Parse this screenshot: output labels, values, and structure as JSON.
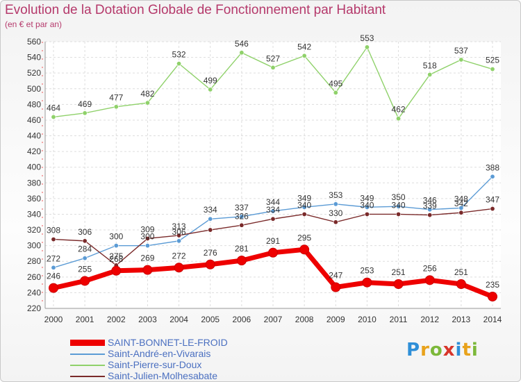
{
  "chart_data": {
    "type": "line",
    "title": "Evolution de la Dotation Globale de Fonctionnement par Habitant",
    "subtitle": "(en € et par an)",
    "x": [
      2000,
      2001,
      2002,
      2003,
      2004,
      2005,
      2006,
      2007,
      2008,
      2009,
      2010,
      2011,
      2012,
      2013,
      2014
    ],
    "ylim": [
      220,
      560
    ],
    "yticks": [
      220,
      240,
      260,
      280,
      300,
      320,
      340,
      360,
      380,
      400,
      420,
      440,
      460,
      480,
      500,
      520,
      540,
      560
    ],
    "grid": true,
    "legend_position": "bottom-left",
    "series": [
      {
        "name": "SAINT-BONNET-LE-FROID",
        "color": "#ee0000",
        "highlight": true,
        "values": [
          246,
          255,
          268,
          269,
          272,
          276,
          281,
          291,
          295,
          247,
          253,
          251,
          256,
          251,
          235
        ],
        "labels": [
          "246",
          "255",
          "268",
          "269",
          "272",
          "276",
          "281",
          "291",
          "295",
          "247",
          "253",
          "251",
          "256",
          "251",
          "235"
        ]
      },
      {
        "name": "Saint-André-en-Vivarais",
        "color": "#5b9bd5",
        "values": [
          272,
          284,
          300,
          300,
          306,
          334,
          337,
          344,
          349,
          353,
          349,
          350,
          346,
          348,
          388
        ],
        "labels": [
          "272",
          "284",
          "300",
          "300",
          "306",
          "334",
          "337",
          "344",
          "349",
          "353",
          "349",
          "350",
          "346",
          "348",
          "388"
        ]
      },
      {
        "name": "Saint-Pierre-sur-Doux",
        "color": "#8fd16a",
        "values": [
          464,
          469,
          477,
          482,
          532,
          499,
          546,
          527,
          542,
          495,
          553,
          462,
          518,
          537,
          525
        ],
        "labels": [
          "464",
          "469",
          "477",
          "482",
          "532",
          "499",
          "546",
          "527",
          "542",
          "495",
          "553",
          "462",
          "518",
          "537",
          "525"
        ]
      },
      {
        "name": "Saint-Julien-Molhesabate",
        "color": "#7a2a2a",
        "values": [
          308,
          306,
          275,
          309,
          313,
          320,
          326,
          334,
          340,
          330,
          340,
          340,
          339,
          342,
          347
        ],
        "labels": [
          "308",
          "306",
          "275",
          "309",
          "313",
          "",
          "326",
          "334",
          "340",
          "330",
          "340",
          "340",
          "339",
          "342",
          "347"
        ]
      }
    ]
  },
  "logo": {
    "letters": [
      "P",
      "r",
      "o",
      "x",
      "i",
      "t",
      "i"
    ]
  }
}
